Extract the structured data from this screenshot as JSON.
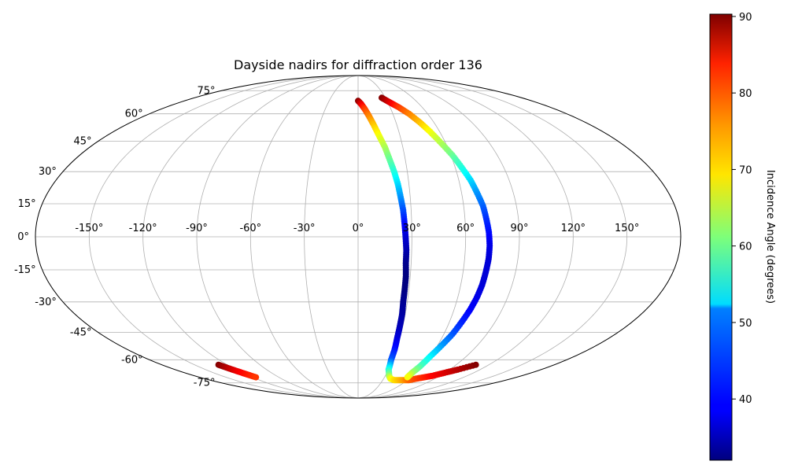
{
  "chart_data": {
    "type": "scatter",
    "projection": "mollweide",
    "title": "Dayside nadirs for diffraction order 136",
    "xlabel": "",
    "ylabel": "",
    "grid": true,
    "x_range": [
      -180,
      180
    ],
    "y_range": [
      -90,
      90
    ],
    "longitude_ticks": [
      "-150°",
      "-120°",
      "-90°",
      "-60°",
      "-30°",
      "0°",
      "30°",
      "60°",
      "90°",
      "120°",
      "150°"
    ],
    "longitude_values": [
      -150,
      -120,
      -90,
      -60,
      -30,
      0,
      30,
      60,
      90,
      120,
      150
    ],
    "latitude_ticks": [
      "-75°",
      "-60°",
      "-45°",
      "-30°",
      "-15°",
      "0°",
      "15°",
      "30°",
      "45°",
      "60°",
      "75°"
    ],
    "latitude_values": [
      -75,
      -60,
      -45,
      -30,
      -15,
      0,
      15,
      30,
      45,
      60,
      75
    ],
    "colorbar": {
      "label": "Incidence Angle (degrees)",
      "range": [
        32,
        90.3
      ],
      "ticks": [
        "40",
        "50",
        "60",
        "70",
        "80",
        "90"
      ],
      "tick_values": [
        40,
        50,
        60,
        70,
        80,
        90
      ],
      "colormap": "jet"
    },
    "series": [
      {
        "points_lon_lat_incidence": [
          [
            0,
            68,
            90
          ],
          [
            3,
            66,
            85
          ],
          [
            6,
            63,
            80
          ],
          [
            9,
            59,
            76
          ],
          [
            12,
            54,
            72
          ],
          [
            15,
            48,
            68
          ],
          [
            18,
            42,
            64
          ],
          [
            20,
            36,
            60
          ],
          [
            22,
            30,
            56
          ],
          [
            23.5,
            24,
            52
          ],
          [
            24.5,
            18,
            48
          ],
          [
            25.5,
            12,
            44
          ],
          [
            26,
            6,
            40
          ],
          [
            26.5,
            0,
            37
          ],
          [
            27,
            -6,
            35
          ],
          [
            27,
            -12,
            33
          ],
          [
            27.5,
            -18,
            32
          ],
          [
            27.5,
            -24,
            32
          ],
          [
            27.5,
            -30,
            33
          ],
          [
            28,
            -36,
            34
          ],
          [
            28,
            -42,
            35
          ],
          [
            28,
            -48,
            37
          ],
          [
            28.5,
            -54,
            40
          ],
          [
            28.5,
            -60,
            44
          ],
          [
            30,
            -66,
            55
          ],
          [
            34,
            -70,
            62
          ],
          [
            38,
            -72,
            67
          ],
          [
            44,
            -73,
            70
          ],
          [
            50,
            -73,
            72
          ],
          [
            56,
            -73,
            74
          ],
          [
            62,
            -73,
            77
          ],
          [
            68,
            -72,
            79
          ],
          [
            75,
            -71,
            81
          ],
          [
            82,
            -70,
            83
          ],
          [
            90,
            -68,
            85
          ],
          [
            98,
            -66,
            87
          ],
          [
            108,
            -63,
            90
          ]
        ]
      },
      {
        "points_lon_lat_incidence": [
          [
            26,
            70,
            90
          ],
          [
            32,
            67,
            85
          ],
          [
            38,
            64,
            80
          ],
          [
            44,
            60,
            76
          ],
          [
            49,
            55,
            72
          ],
          [
            53,
            50,
            68
          ],
          [
            57,
            44,
            64
          ],
          [
            61,
            38,
            60
          ],
          [
            64,
            32,
            56
          ],
          [
            67,
            26,
            52
          ],
          [
            69,
            20,
            48
          ],
          [
            71,
            14,
            45
          ],
          [
            72,
            8,
            42
          ],
          [
            73,
            2,
            40
          ],
          [
            73.5,
            -4,
            38
          ],
          [
            73.5,
            -10,
            37
          ],
          [
            73,
            -16,
            37
          ],
          [
            72.5,
            -22,
            37
          ],
          [
            71.5,
            -28,
            38
          ],
          [
            70,
            -34,
            39
          ],
          [
            68,
            -40,
            41
          ],
          [
            66,
            -46,
            44
          ],
          [
            63,
            -52,
            48
          ],
          [
            60,
            -58,
            53
          ],
          [
            58,
            -64,
            58
          ],
          [
            56,
            -68,
            63
          ],
          [
            56,
            -71,
            68
          ]
        ]
      },
      {
        "points_lon_lat_incidence": [
          [
            -128,
            -63,
            90
          ],
          [
            -125,
            -65,
            87
          ],
          [
            -122,
            -67,
            84
          ],
          [
            -119,
            -69,
            82
          ],
          [
            -116,
            -71,
            80
          ]
        ]
      }
    ]
  }
}
